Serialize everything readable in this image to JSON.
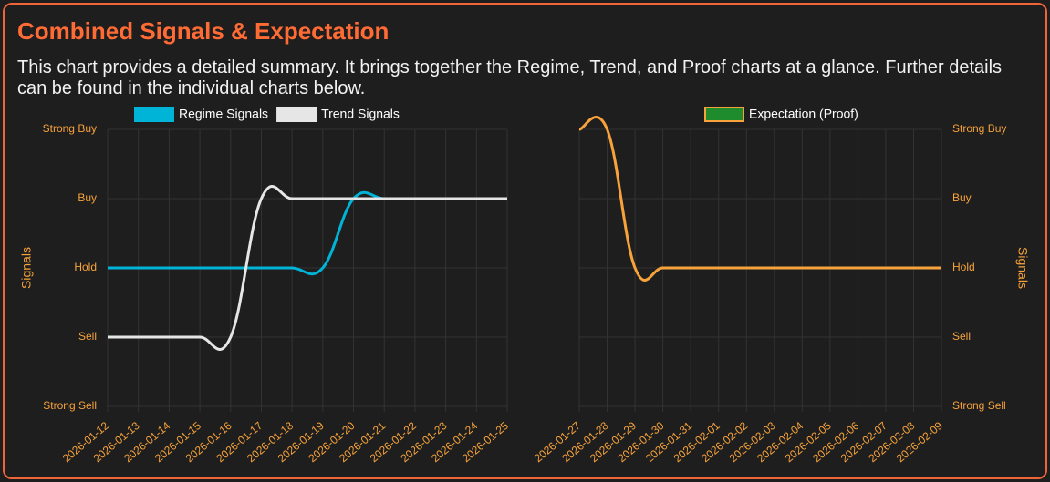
{
  "header": {
    "title": "Combined Signals & Expectation",
    "description": "This chart provides a detailed summary. It brings together the Regime, Trend, and Proof charts at a glance. Further details can be found in the individual charts below."
  },
  "chart_data": [
    {
      "type": "line",
      "y_label": "Signals",
      "y_axis_side": "left",
      "grid": true,
      "categories": [
        "2026-01-12",
        "2026-01-13",
        "2026-01-14",
        "2026-01-15",
        "2026-01-16",
        "2026-01-17",
        "2026-01-18",
        "2026-01-19",
        "2026-01-20",
        "2026-01-21",
        "2026-01-22",
        "2026-01-23",
        "2026-01-24",
        "2026-01-25"
      ],
      "ylim": [
        -2,
        2
      ],
      "yticks": [
        {
          "value": -2,
          "label": "Strong Sell"
        },
        {
          "value": -1,
          "label": "Sell"
        },
        {
          "value": 0,
          "label": "Hold"
        },
        {
          "value": 1,
          "label": "Buy"
        },
        {
          "value": 2,
          "label": "Strong Buy"
        }
      ],
      "series": [
        {
          "name": "Regime Signals",
          "color": "#00b4d8",
          "values": [
            0,
            0,
            0,
            0,
            0,
            0,
            0,
            0,
            1,
            1,
            1,
            1,
            1,
            1
          ]
        },
        {
          "name": "Trend Signals",
          "color": "#e6e6e6",
          "values": [
            -1,
            -1,
            -1,
            -1,
            -1,
            1,
            1,
            1,
            1,
            1,
            1,
            1,
            1,
            1
          ]
        }
      ]
    },
    {
      "type": "line",
      "y_label": "Signals",
      "y_axis_side": "right",
      "grid": true,
      "categories": [
        "2026-01-27",
        "2026-01-28",
        "2026-01-29",
        "2026-01-30",
        "2026-01-31",
        "2026-02-01",
        "2026-02-02",
        "2026-02-03",
        "2026-02-04",
        "2026-02-05",
        "2026-02-06",
        "2026-02-07",
        "2026-02-08",
        "2026-02-09"
      ],
      "ylim": [
        -2,
        2
      ],
      "yticks": [
        {
          "value": -2,
          "label": "Strong Sell"
        },
        {
          "value": -1,
          "label": "Sell"
        },
        {
          "value": 0,
          "label": "Hold"
        },
        {
          "value": 1,
          "label": "Buy"
        },
        {
          "value": 2,
          "label": "Strong Buy"
        }
      ],
      "series": [
        {
          "name": "Expectation (Proof)",
          "color": "#f7a23b",
          "legend_fill": "#1e8c2d",
          "values": [
            2,
            2,
            0,
            0,
            0,
            0,
            0,
            0,
            0,
            0,
            0,
            0,
            0,
            0
          ]
        }
      ]
    }
  ]
}
